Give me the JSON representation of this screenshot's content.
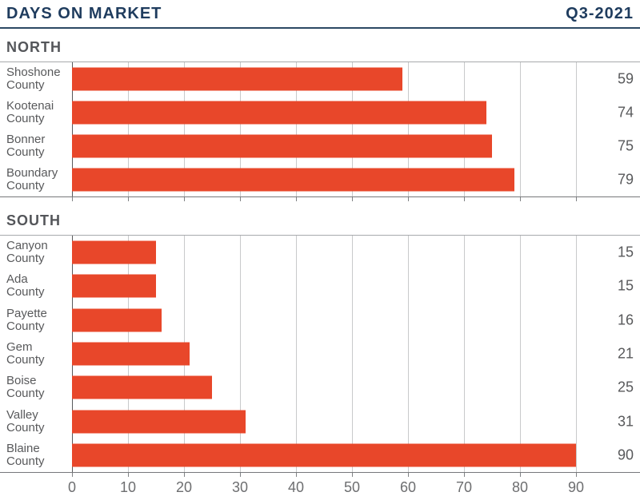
{
  "header": {
    "title": "DAYS ON MARKET",
    "period": "Q3-2021"
  },
  "chart_data": {
    "type": "bar",
    "orientation": "horizontal",
    "title": "DAYS ON MARKET",
    "period": "Q3-2021",
    "value_unit": "days",
    "xlabel": "",
    "ylabel": "",
    "xlim": [
      0,
      90
    ],
    "x_ticks": [
      0,
      10,
      20,
      30,
      40,
      50,
      60,
      70,
      80,
      90
    ],
    "grid": true,
    "show_value_labels": true,
    "legend": false,
    "sections": [
      {
        "label": "NORTH",
        "categories": [
          "Shoshone County",
          "Kootenai County",
          "Bonner County",
          "Boundary County"
        ],
        "values": [
          59,
          74,
          75,
          79
        ],
        "show_x_axis_labels": false
      },
      {
        "label": "SOUTH",
        "categories": [
          "Canyon County",
          "Ada County",
          "Payette County",
          "Gem County",
          "Boise County",
          "Valley County",
          "Blaine County"
        ],
        "values": [
          15,
          15,
          16,
          21,
          25,
          31,
          90
        ],
        "show_x_axis_labels": true
      }
    ]
  },
  "colors": {
    "accent_navy": "#1F3C5E",
    "bar": "#E8472A",
    "text_gray": "#58595B",
    "tick_gray": "#6D6E70",
    "gridline": "#C9CACB",
    "zero_line": "#58595B",
    "plot_top_border": "#A7A9AC",
    "axis_line": "#77787B"
  }
}
